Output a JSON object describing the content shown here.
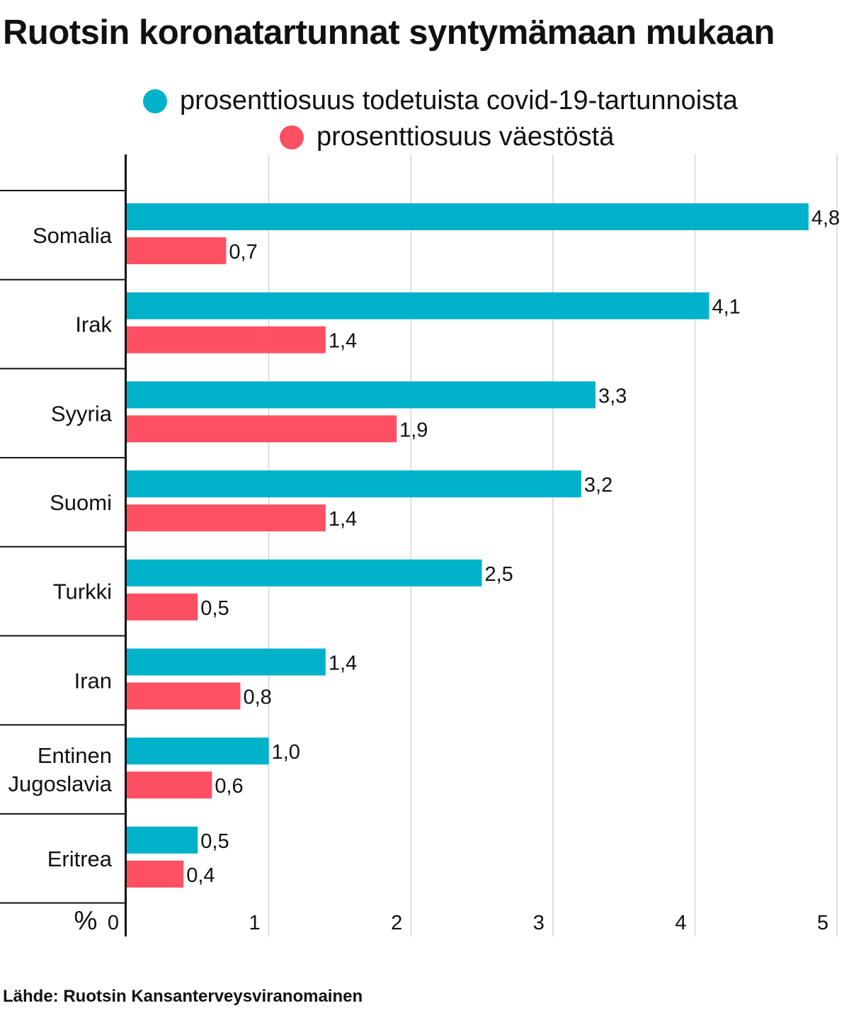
{
  "title": "Ruotsin koronatartunnat syntymämaan mukaan",
  "source": "Lähde: Ruotsin Kansanterveysviranomainen",
  "colors": {
    "covid": "#00b2c9",
    "population": "#ff5063"
  },
  "chart_data": {
    "type": "bar",
    "orientation": "horizontal",
    "categories": [
      "Somalia",
      "Irak",
      "Syyria",
      "Suomi",
      "Turkki",
      "Iran",
      "Entinen Jugoslavia",
      "Eritrea"
    ],
    "series": [
      {
        "name": "prosenttiosuus todetuista covid-19-tartunnoista",
        "color": "#00b2c9",
        "values": [
          4.8,
          4.1,
          3.3,
          3.2,
          2.5,
          1.4,
          1.0,
          0.5
        ],
        "labels": [
          "4,8",
          "4,1",
          "3,3",
          "3,2",
          "2,5",
          "1,4",
          "1,0",
          "0,5"
        ]
      },
      {
        "name": "prosenttiosuus väestöstä",
        "color": "#ff5063",
        "values": [
          0.7,
          1.4,
          1.9,
          1.4,
          0.5,
          0.8,
          0.6,
          0.4
        ],
        "labels": [
          "0,7",
          "1,4",
          "1,9",
          "1,4",
          "0,5",
          "0,8",
          "0,6",
          "0,4"
        ]
      }
    ],
    "xlim": [
      0,
      5
    ],
    "xticks": [
      "0",
      "1",
      "2",
      "3",
      "4",
      "5"
    ],
    "xlabel": "%",
    "grid": true,
    "legend_position": "top"
  }
}
